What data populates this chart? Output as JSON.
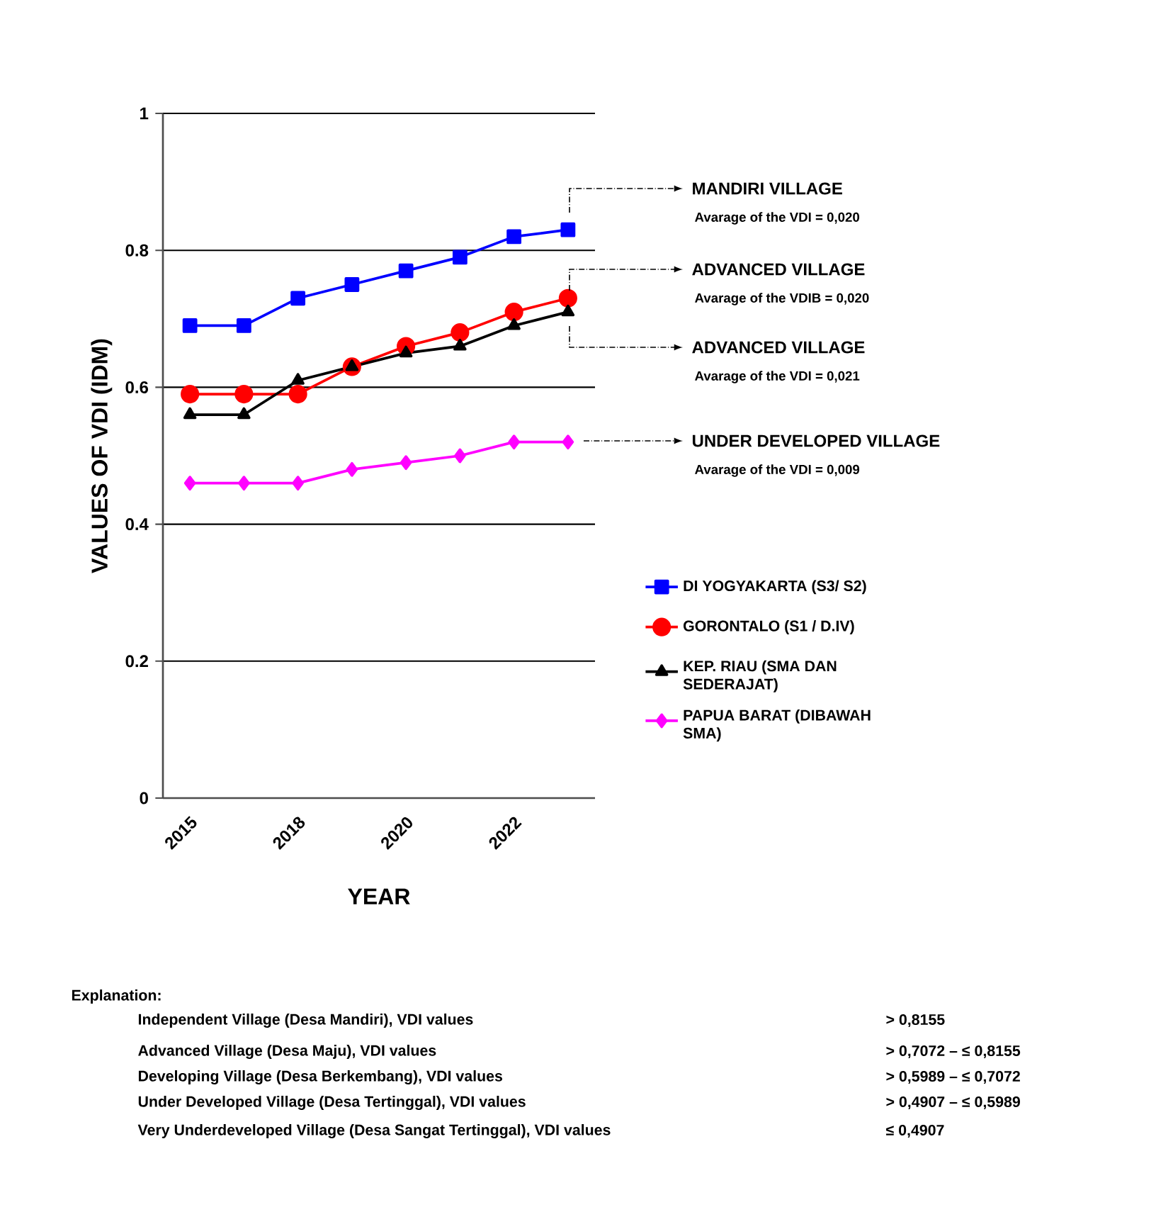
{
  "chart_data": {
    "type": "line",
    "xlabel": "YEAR",
    "ylabel": "VALUES OF VDI (IDM)",
    "categories": [
      "2015",
      null,
      "2018",
      null,
      "2020",
      null,
      "2022",
      null
    ],
    "series": [
      {
        "name": "DI YOGYAKARTA (S3/ S2)",
        "color": "#0000ff",
        "marker": "square",
        "values": [
          0.69,
          0.69,
          0.73,
          0.75,
          0.77,
          0.79,
          0.82,
          0.83
        ]
      },
      {
        "name": "GORONTALO (S1 / D.IV)",
        "color": "#ff0000",
        "marker": "circle",
        "values": [
          0.59,
          0.59,
          0.59,
          0.63,
          0.66,
          0.68,
          0.71,
          0.73
        ]
      },
      {
        "name": "KEP. RIAU (SMA DAN SEDERAJAT)",
        "color": "#000000",
        "marker": "triangle",
        "values": [
          0.56,
          0.56,
          0.61,
          0.63,
          0.65,
          0.66,
          0.69,
          0.71
        ]
      },
      {
        "name": "PAPUA BARAT (DIBAWAH SMA)",
        "color": "#ff00ff",
        "marker": "diamond",
        "values": [
          0.46,
          0.46,
          0.46,
          0.48,
          0.49,
          0.5,
          0.52,
          0.52
        ]
      }
    ],
    "ylim": [
      0,
      1
    ],
    "yticks": [
      0,
      0.2,
      0.4,
      0.6,
      0.8,
      1
    ],
    "grid": "y",
    "legend": "right",
    "line_style": "solid",
    "annotations": [
      "MANDIRI VILLAGE",
      "Avarage of the VDI = 0,020",
      "ADVANCED VILLAGE",
      "Avarage of the VDIB = 0,020",
      "ADVANCED VILLAGE",
      "Avarage of the VDI = 0,021",
      "UNDER DEVELOPED VILLAGE",
      "Avarage of the VDI = 0,009",
      "Explanation:",
      "Independent Village (Desa Mandiri), VDI values",
      "Advanced Village (Desa Maju), VDI values",
      "Developing Village (Desa Berkembang), VDI values",
      "Under Developed Village (Desa Tertinggal), VDI values",
      "Very Underdeveloped Village (Desa Sangat Tertinggal), VDI values",
      "> 0,8155",
      "> 0,7072 – ≤ 0,8155",
      "> 0,5989 – ≤ 0,7072",
      "> 0,4907 – ≤ 0,5989",
      "≤ 0,4907"
    ]
  }
}
